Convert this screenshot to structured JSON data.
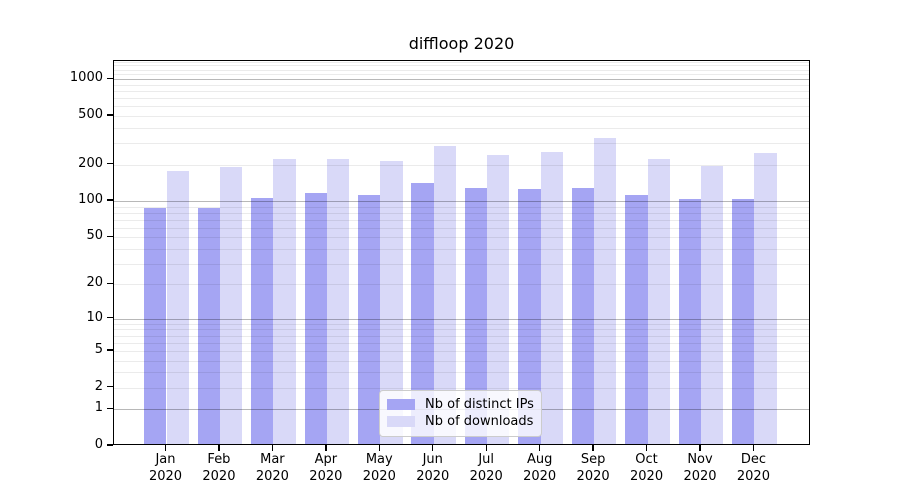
{
  "title": "diffloop 2020",
  "legend": {
    "items": [
      {
        "label": "Nb of distinct IPs",
        "color": "#a5a5f3"
      },
      {
        "label": "Nb of downloads",
        "color": "#d9d9f8"
      }
    ]
  },
  "colors": {
    "bar_distinct_ips": "#a5a5f3",
    "bar_downloads": "#d9d9f8",
    "major_gridline": "#b5b5b5",
    "minor_gridline": "#e8e8e8",
    "axis": "#000000"
  },
  "chart_data": {
    "type": "bar",
    "title": "diffloop 2020",
    "xlabel": "",
    "ylabel": "",
    "categories": [
      "Jan 2020",
      "Feb 2020",
      "Mar 2020",
      "Apr 2020",
      "May 2020",
      "Jun 2020",
      "Jul 2020",
      "Aug 2020",
      "Sep 2020",
      "Oct 2020",
      "Nov 2020",
      "Dec 2020"
    ],
    "x_tick_line1": [
      "Jan",
      "Feb",
      "Mar",
      "Apr",
      "May",
      "Jun",
      "Jul",
      "Aug",
      "Sep",
      "Oct",
      "Nov",
      "Dec"
    ],
    "x_tick_line2": [
      "2020",
      "2020",
      "2020",
      "2020",
      "2020",
      "2020",
      "2020",
      "2020",
      "2020",
      "2020",
      "2020",
      "2020"
    ],
    "series": [
      {
        "name": "Nb of distinct IPs",
        "color": "#a5a5f3",
        "values": [
          85,
          85,
          102,
          112,
          108,
          135,
          123,
          121,
          124,
          108,
          100,
          100
        ]
      },
      {
        "name": "Nb of downloads",
        "color": "#d9d9f8",
        "values": [
          172,
          185,
          215,
          215,
          205,
          272,
          233,
          243,
          318,
          214,
          187,
          238
        ]
      }
    ],
    "y_axis": {
      "scale": "log10(value+1)",
      "ticks": [
        0,
        1,
        2,
        5,
        10,
        20,
        50,
        100,
        200,
        500,
        1000
      ],
      "major_gridlines": [
        1,
        10,
        100,
        1000
      ],
      "minor_gridlines": [
        2,
        3,
        4,
        5,
        6,
        7,
        8,
        9,
        20,
        30,
        40,
        50,
        60,
        70,
        80,
        90,
        200,
        300,
        400,
        500,
        600,
        700,
        800,
        900,
        1100,
        1200,
        1300,
        1400
      ],
      "min": 0,
      "max": 1414
    },
    "grid": "on",
    "legend_position": "lower center inside plot"
  }
}
